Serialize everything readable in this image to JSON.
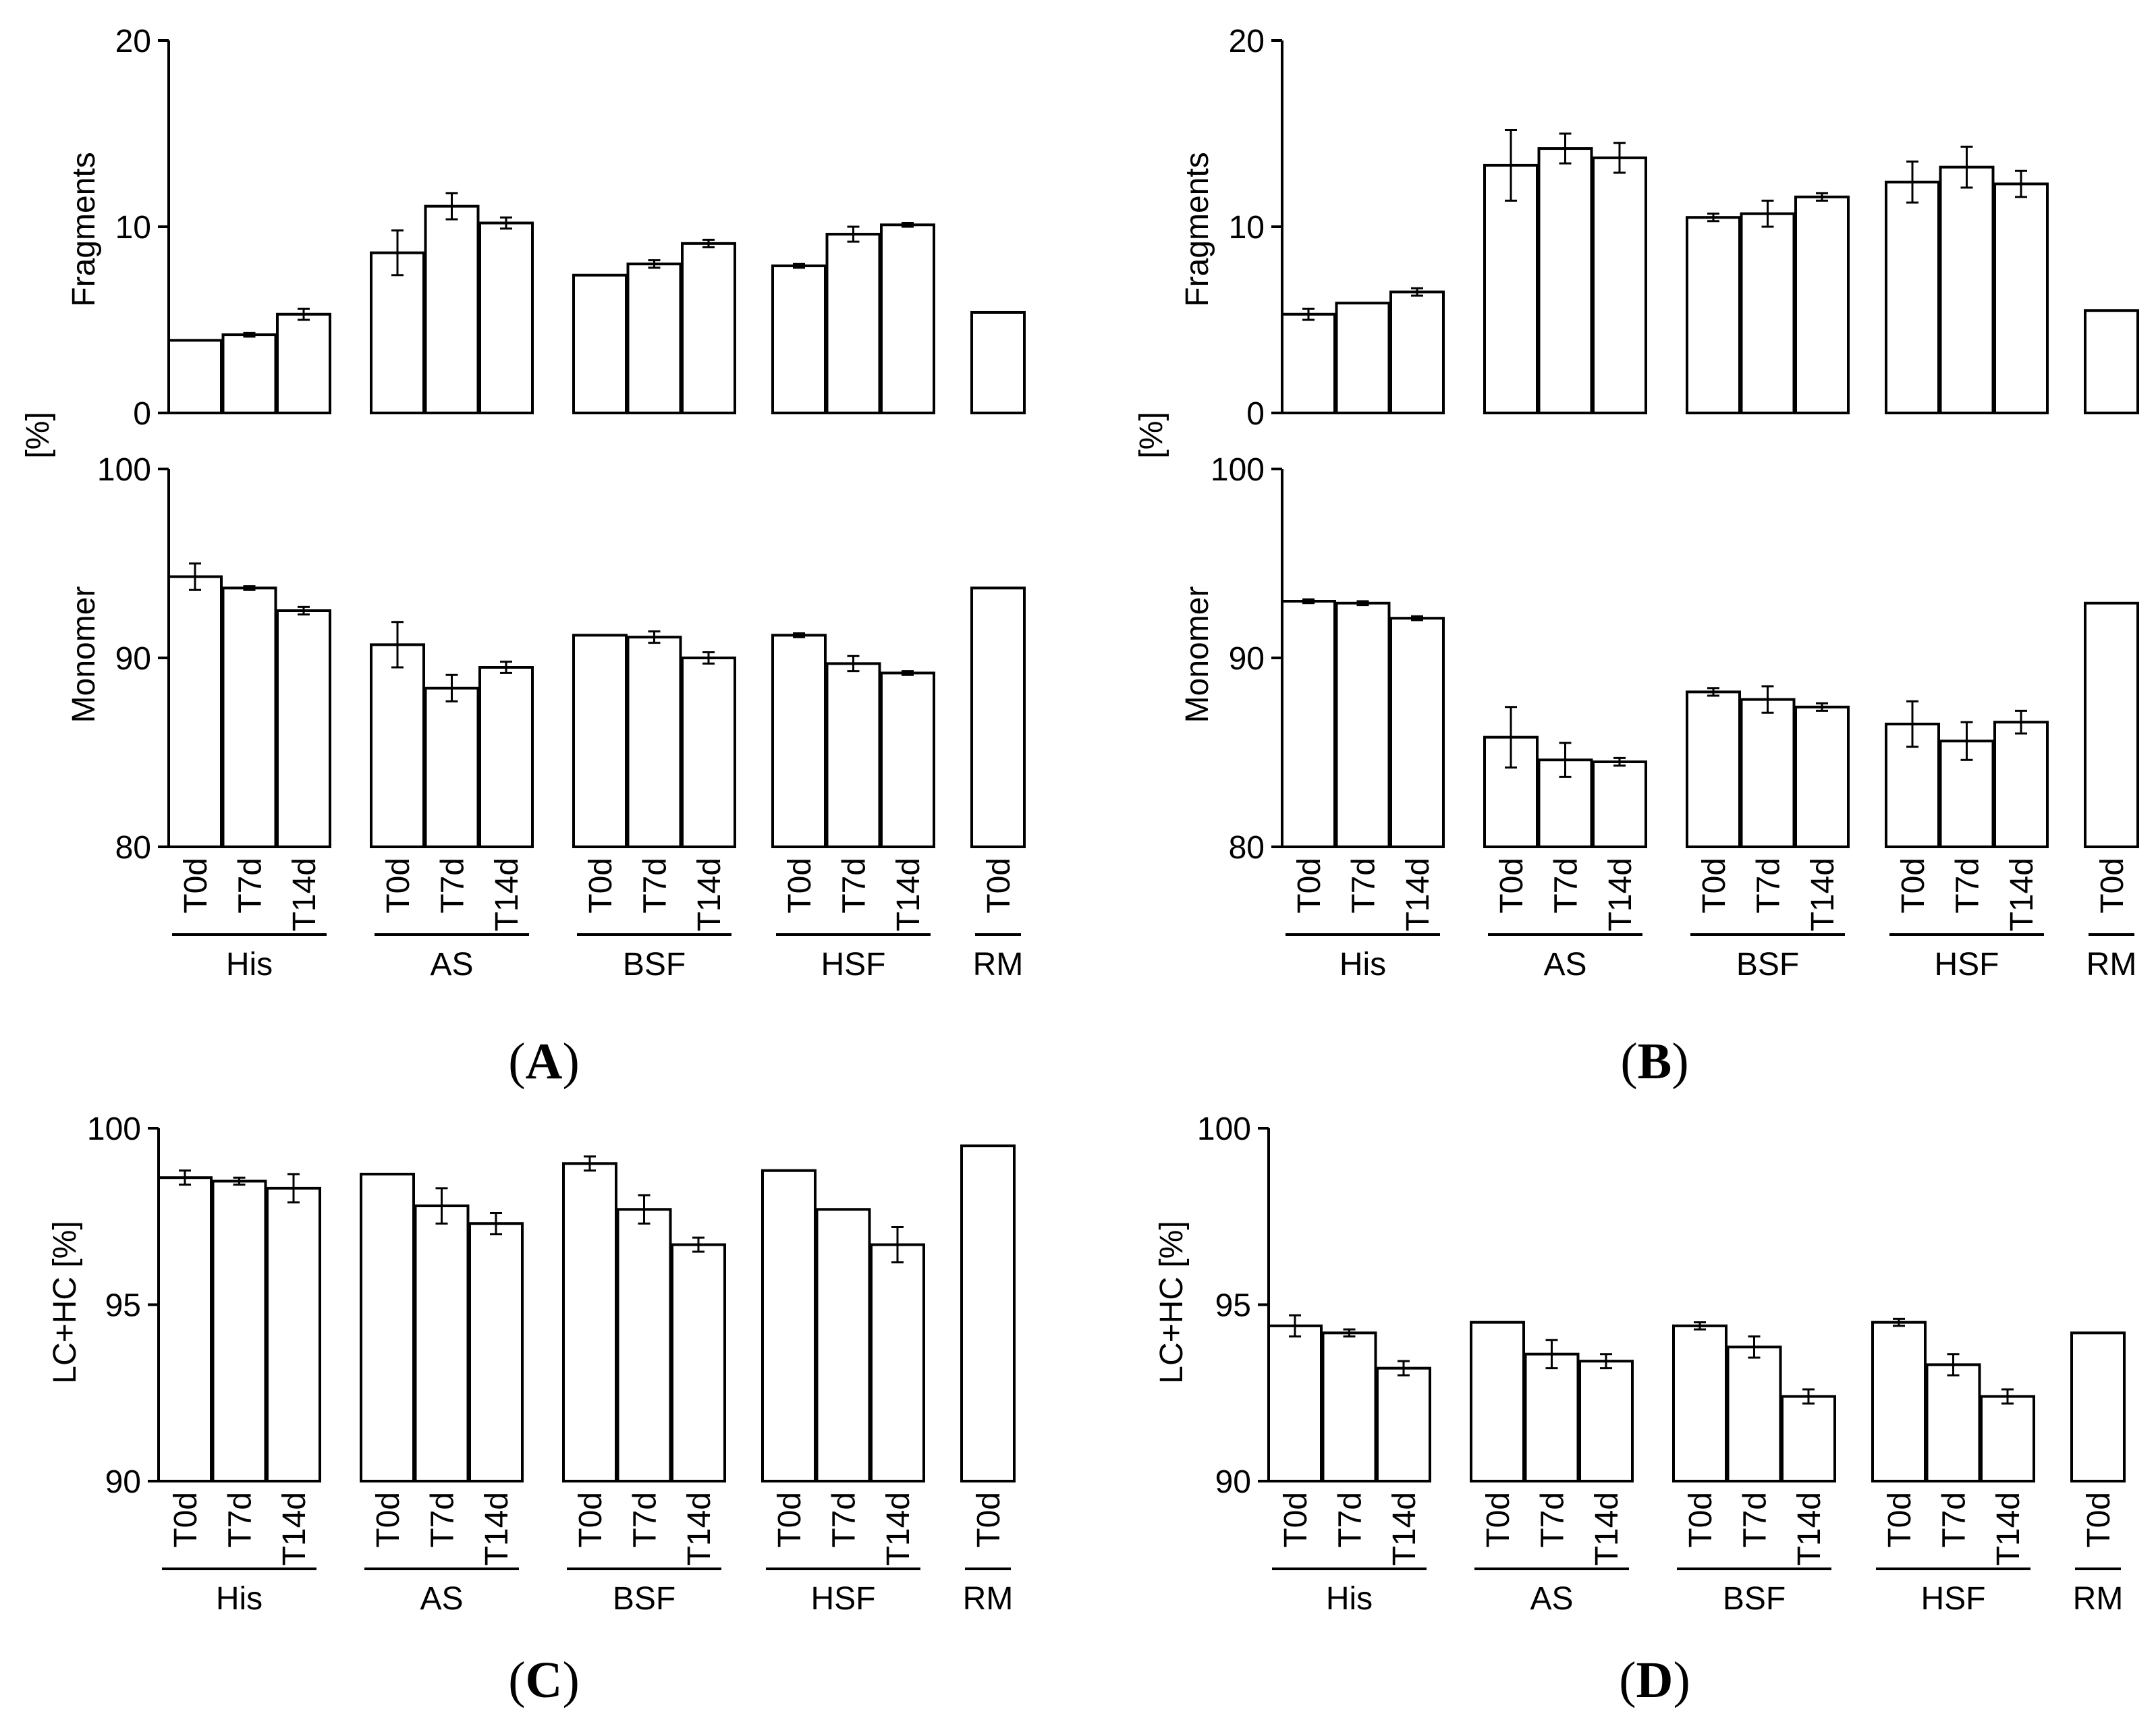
{
  "figure": {
    "categories": [
      "T0d",
      "T7d",
      "T14d",
      "T0d",
      "T7d",
      "T14d",
      "T0d",
      "T7d",
      "T14d",
      "T0d",
      "T7d",
      "T14d",
      "T0d"
    ],
    "groups": [
      "His",
      "AS",
      "BSF",
      "HSF",
      "RM"
    ],
    "shared_ylabel": "[%]",
    "panel_labels": {
      "A": "A",
      "B": "B",
      "C": "C",
      "D": "D"
    }
  },
  "chart_data": [
    {
      "id": "A-fragments",
      "panel": "A",
      "type": "bar",
      "ylabel": "Fragments",
      "ylim": [
        0,
        20
      ],
      "yticks": [
        "0",
        "10",
        "20"
      ],
      "values": [
        3.9,
        4.2,
        5.3,
        8.6,
        11.1,
        10.2,
        7.4,
        8.0,
        9.1,
        7.9,
        9.6,
        10.1,
        5.4
      ],
      "errors": [
        0.0,
        0.1,
        0.3,
        1.2,
        0.7,
        0.3,
        0.0,
        0.2,
        0.2,
        0.1,
        0.4,
        0.1,
        0.0
      ]
    },
    {
      "id": "A-monomer",
      "panel": "A",
      "type": "bar",
      "ylabel": "Monomer",
      "ylim": [
        80,
        100
      ],
      "yticks": [
        "80",
        "90",
        "100"
      ],
      "values": [
        94.3,
        93.7,
        92.5,
        90.7,
        88.4,
        89.5,
        91.2,
        91.1,
        90.0,
        91.2,
        89.7,
        89.2,
        93.7
      ],
      "errors": [
        0.7,
        0.1,
        0.2,
        1.2,
        0.7,
        0.3,
        0.0,
        0.3,
        0.3,
        0.1,
        0.4,
        0.1,
        0.0
      ]
    },
    {
      "id": "B-fragments",
      "panel": "B",
      "type": "bar",
      "ylabel": "Fragments",
      "ylim": [
        0,
        20
      ],
      "yticks": [
        "0",
        "10",
        "20"
      ],
      "values": [
        5.3,
        5.9,
        6.5,
        13.3,
        14.2,
        13.7,
        10.5,
        10.7,
        11.6,
        12.4,
        13.2,
        12.3,
        5.5
      ],
      "errors": [
        0.3,
        0.0,
        0.2,
        1.9,
        0.8,
        0.8,
        0.2,
        0.7,
        0.2,
        1.1,
        1.1,
        0.7,
        0.0
      ]
    },
    {
      "id": "B-monomer",
      "panel": "B",
      "type": "bar",
      "ylabel": "Monomer",
      "ylim": [
        80,
        100
      ],
      "yticks": [
        "80",
        "90",
        "100"
      ],
      "values": [
        93.0,
        92.9,
        92.1,
        85.8,
        84.6,
        84.5,
        88.2,
        87.8,
        87.4,
        86.5,
        85.6,
        86.6,
        92.9
      ],
      "errors": [
        0.1,
        0.1,
        0.1,
        1.6,
        0.9,
        0.2,
        0.2,
        0.7,
        0.2,
        1.2,
        1.0,
        0.6,
        0.0
      ]
    },
    {
      "id": "C-lchc",
      "panel": "C",
      "type": "bar",
      "ylabel": "LC+HC [%]",
      "ylim": [
        90,
        100
      ],
      "yticks": [
        "90",
        "95",
        "100"
      ],
      "values": [
        98.6,
        98.5,
        98.3,
        98.7,
        97.8,
        97.3,
        99.0,
        97.7,
        96.7,
        98.8,
        97.7,
        96.7,
        99.5
      ],
      "errors": [
        0.2,
        0.1,
        0.4,
        0.0,
        0.5,
        0.3,
        0.2,
        0.4,
        0.2,
        0.0,
        0.0,
        0.5,
        0.0
      ]
    },
    {
      "id": "D-lchc",
      "panel": "D",
      "type": "bar",
      "ylabel": "LC+HC [%]",
      "ylim": [
        90,
        100
      ],
      "yticks": [
        "90",
        "95",
        "100"
      ],
      "values": [
        94.4,
        94.2,
        93.2,
        94.5,
        93.6,
        93.4,
        94.4,
        93.8,
        92.4,
        94.5,
        93.3,
        92.4,
        94.2
      ],
      "errors": [
        0.3,
        0.1,
        0.2,
        0.0,
        0.4,
        0.2,
        0.1,
        0.3,
        0.2,
        0.1,
        0.3,
        0.2,
        0.0
      ]
    }
  ]
}
